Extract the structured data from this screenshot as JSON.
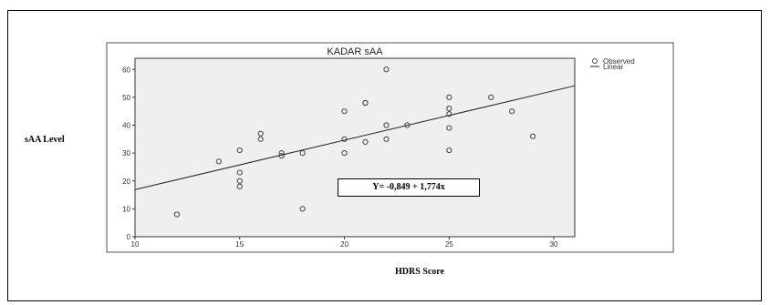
{
  "chart_data": {
    "type": "scatter",
    "title": "KADAR sAA",
    "xlabel": "HDRS Score",
    "ylabel": "sAA Level",
    "xlim": [
      10,
      31
    ],
    "ylim": [
      0,
      64
    ],
    "x_ticks": [
      10,
      15,
      20,
      25,
      30
    ],
    "y_ticks": [
      0,
      10,
      20,
      30,
      40,
      50,
      60
    ],
    "grid": false,
    "legend_position": "right",
    "legend": [
      "Observed",
      "Linear"
    ],
    "plot_background": "#efefef",
    "series": [
      {
        "name": "Observed",
        "kind": "scatter",
        "marker": "open-circle",
        "points": [
          [
            12,
            8
          ],
          [
            14,
            27
          ],
          [
            15,
            18
          ],
          [
            15,
            20
          ],
          [
            15,
            23
          ],
          [
            15,
            31
          ],
          [
            16,
            35
          ],
          [
            16,
            37
          ],
          [
            17,
            29
          ],
          [
            17,
            30
          ],
          [
            18,
            10
          ],
          [
            18,
            30
          ],
          [
            20,
            30
          ],
          [
            20,
            35
          ],
          [
            20,
            45
          ],
          [
            21,
            34
          ],
          [
            21,
            48
          ],
          [
            21,
            48
          ],
          [
            22,
            35
          ],
          [
            22,
            40
          ],
          [
            22,
            60
          ],
          [
            23,
            40
          ],
          [
            25,
            31
          ],
          [
            25,
            39
          ],
          [
            25,
            44
          ],
          [
            25,
            46
          ],
          [
            25,
            50
          ],
          [
            27,
            50
          ],
          [
            28,
            45
          ],
          [
            29,
            36
          ]
        ]
      },
      {
        "name": "Linear",
        "kind": "line",
        "intercept": -0.849,
        "slope": 1.774
      }
    ],
    "annotations": [
      {
        "text": "Y= -0,849 + 1,774x"
      }
    ]
  }
}
